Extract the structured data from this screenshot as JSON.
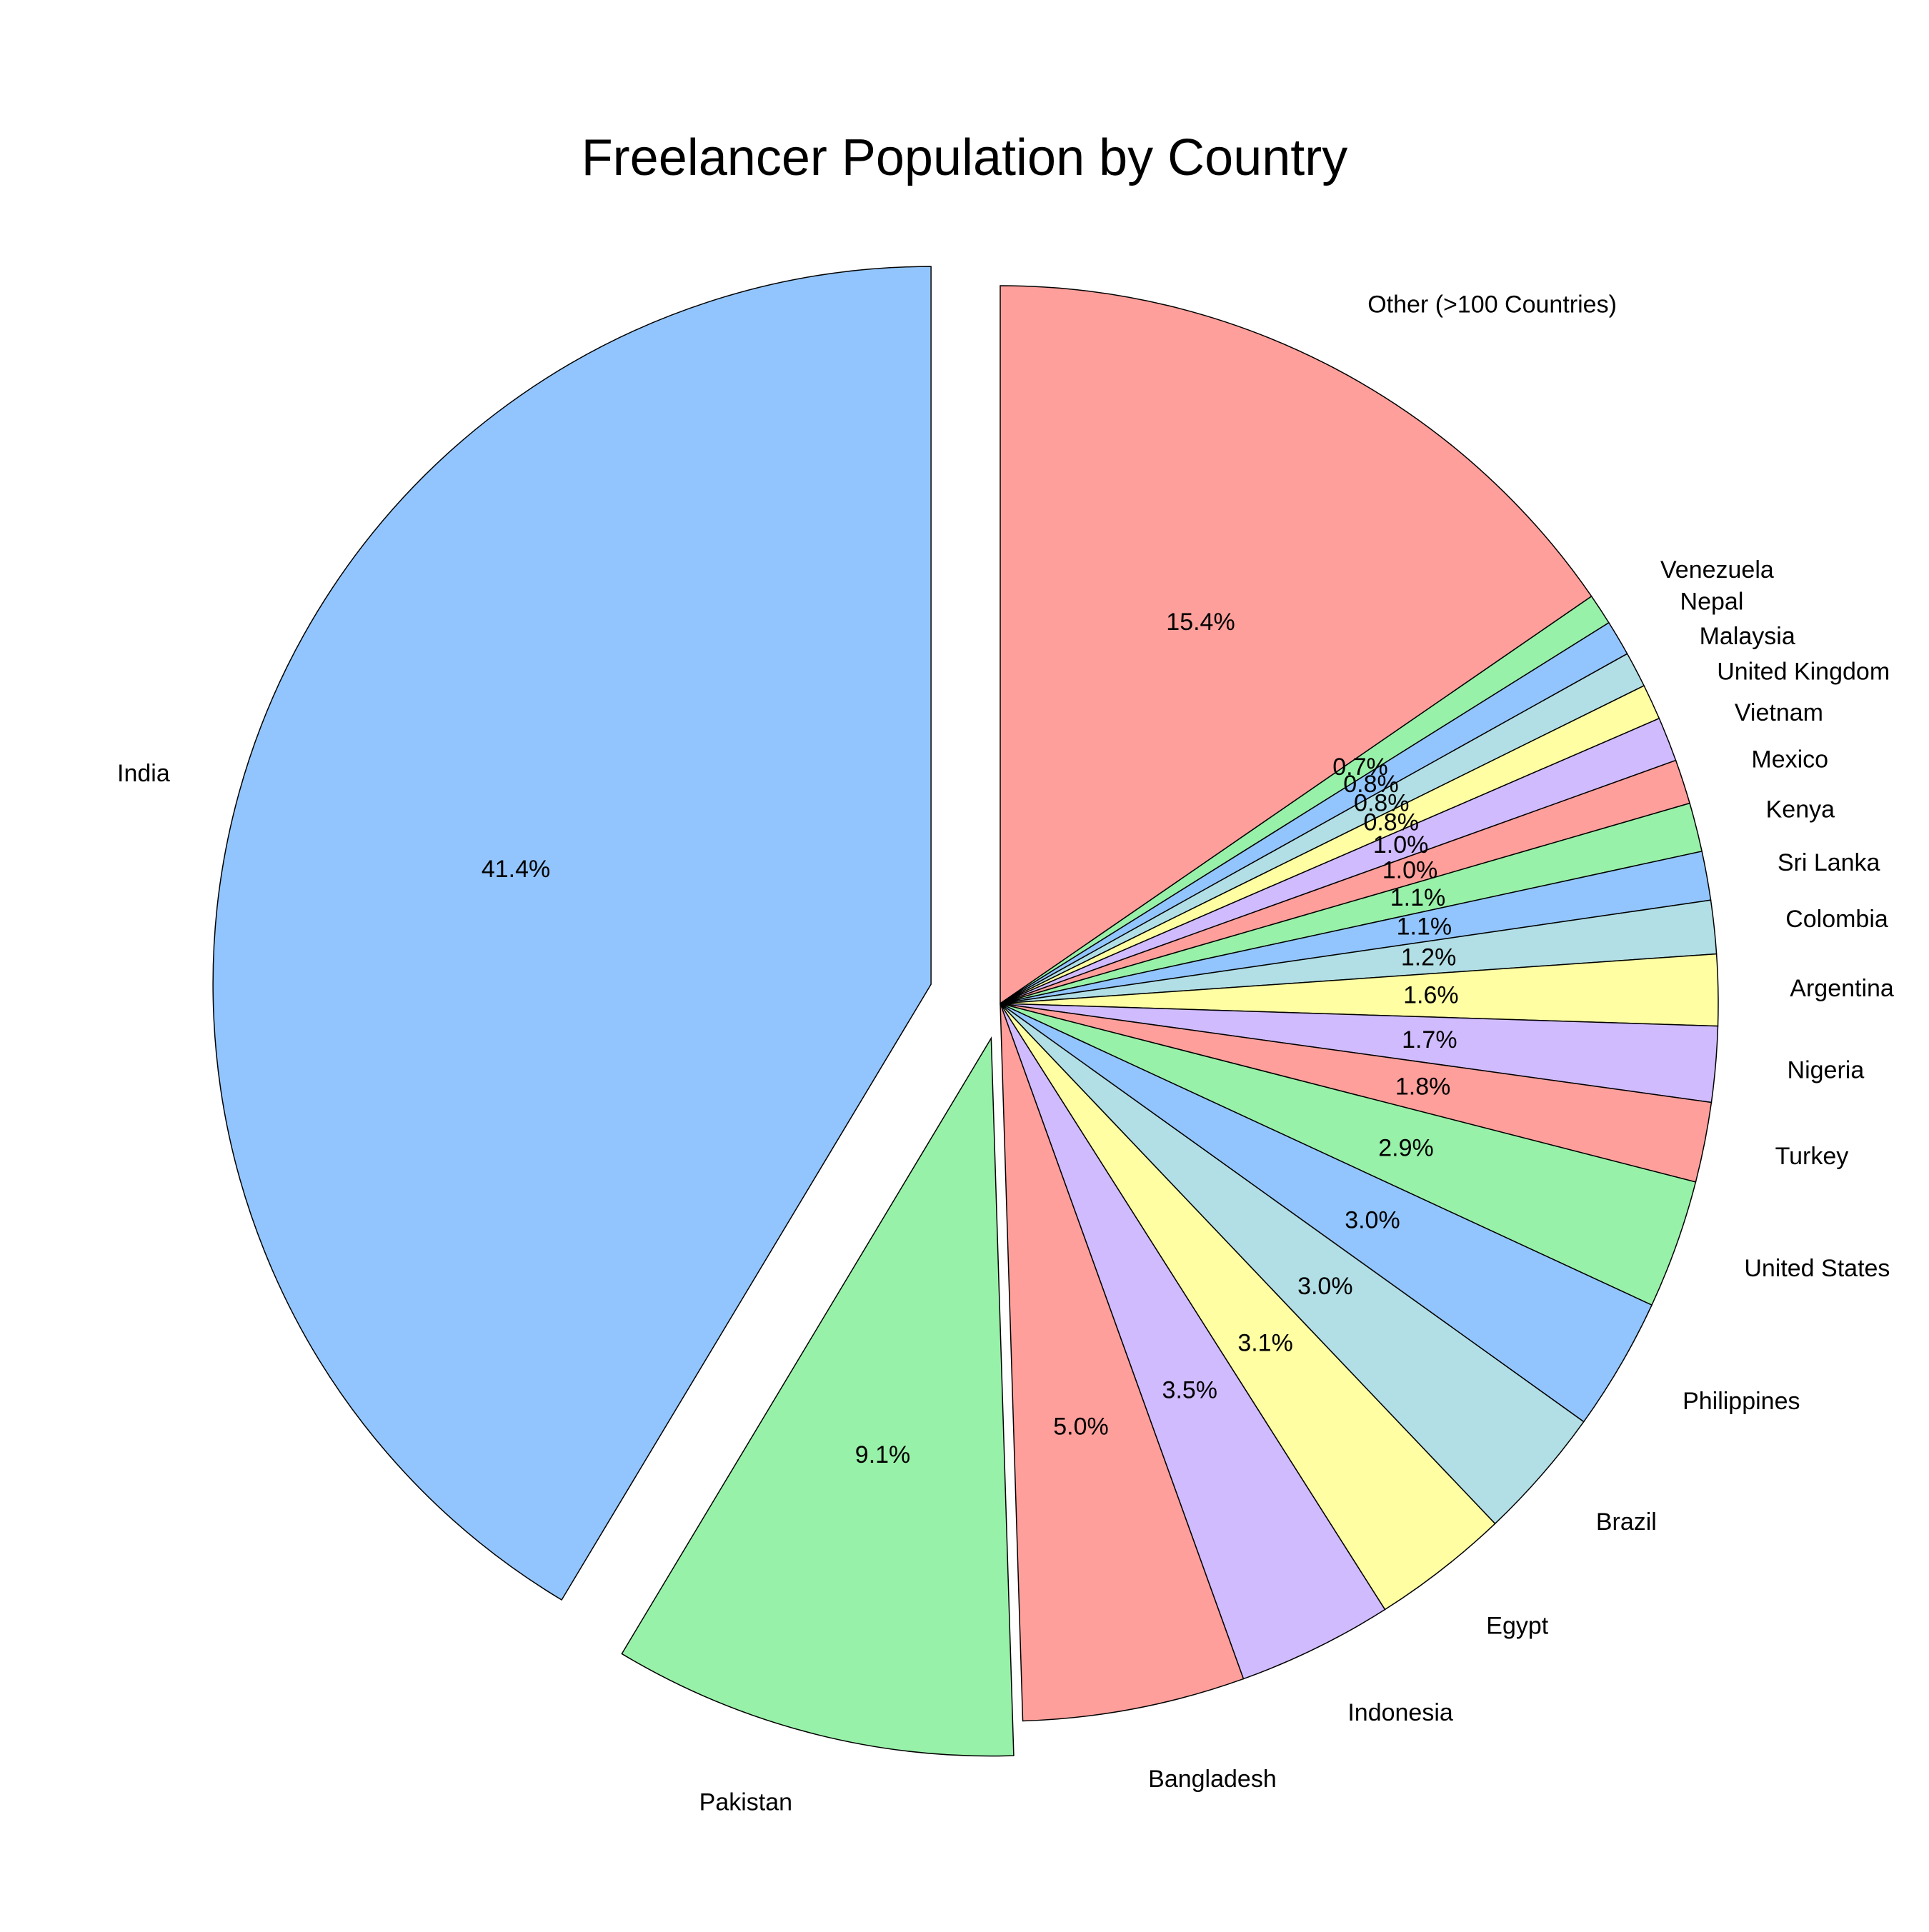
{
  "chart_data": {
    "type": "pie",
    "title": "Freelancer Population by Country",
    "start_angle_deg": 90,
    "direction": "clockwise",
    "slices": [
      {
        "label": "Other (>100 Countries)",
        "value": 15.4,
        "pct_label": "15.4%",
        "color": "#ff9f9b",
        "explode": 0
      },
      {
        "label": "Venezuela",
        "value": 0.7,
        "pct_label": "0.7%",
        "color": "#98f1a8",
        "explode": 0
      },
      {
        "label": "Nepal",
        "value": 0.8,
        "pct_label": "0.8%",
        "color": "#92c5fd",
        "explode": 0
      },
      {
        "label": "Malaysia",
        "value": 0.8,
        "pct_label": "0.8%",
        "color": "#b1dfe5",
        "explode": 0
      },
      {
        "label": "United Kingdom",
        "value": 0.8,
        "pct_label": "0.8%",
        "color": "#fffea2",
        "explode": 0
      },
      {
        "label": "Vietnam",
        "value": 1.0,
        "pct_label": "1.0%",
        "color": "#d0bbff",
        "explode": 0
      },
      {
        "label": "Mexico",
        "value": 1.0,
        "pct_label": "1.0%",
        "color": "#ff9f9b",
        "explode": 0
      },
      {
        "label": "Kenya",
        "value": 1.1,
        "pct_label": "1.1%",
        "color": "#98f1a8",
        "explode": 0
      },
      {
        "label": "Sri Lanka",
        "value": 1.1,
        "pct_label": "1.1%",
        "color": "#92c5fd",
        "explode": 0
      },
      {
        "label": "Colombia",
        "value": 1.2,
        "pct_label": "1.2%",
        "color": "#b1dfe5",
        "explode": 0
      },
      {
        "label": "Argentina",
        "value": 1.6,
        "pct_label": "1.6%",
        "color": "#fffea2",
        "explode": 0
      },
      {
        "label": "Nigeria",
        "value": 1.7,
        "pct_label": "1.7%",
        "color": "#d0bbff",
        "explode": 0
      },
      {
        "label": "Turkey",
        "value": 1.8,
        "pct_label": "1.8%",
        "color": "#ff9f9b",
        "explode": 0
      },
      {
        "label": "United States",
        "value": 2.9,
        "pct_label": "2.9%",
        "color": "#98f1a8",
        "explode": 0
      },
      {
        "label": "Philippines",
        "value": 3.0,
        "pct_label": "3.0%",
        "color": "#92c5fd",
        "explode": 0
      },
      {
        "label": "Brazil",
        "value": 3.0,
        "pct_label": "3.0%",
        "color": "#b1dfe5",
        "explode": 0
      },
      {
        "label": "Egypt",
        "value": 3.1,
        "pct_label": "3.1%",
        "color": "#fffea2",
        "explode": 0
      },
      {
        "label": "Indonesia",
        "value": 3.5,
        "pct_label": "3.5%",
        "color": "#d0bbff",
        "explode": 0
      },
      {
        "label": "Bangladesh",
        "value": 5.0,
        "pct_label": "5.0%",
        "color": "#ff9f9b",
        "explode": 0
      },
      {
        "label": "Pakistan",
        "value": 9.1,
        "pct_label": "9.1%",
        "color": "#98f1a8",
        "explode": 0.05
      },
      {
        "label": "India",
        "value": 41.4,
        "pct_label": "41.4%",
        "color": "#92c5fd",
        "explode": 0.1
      }
    ]
  }
}
